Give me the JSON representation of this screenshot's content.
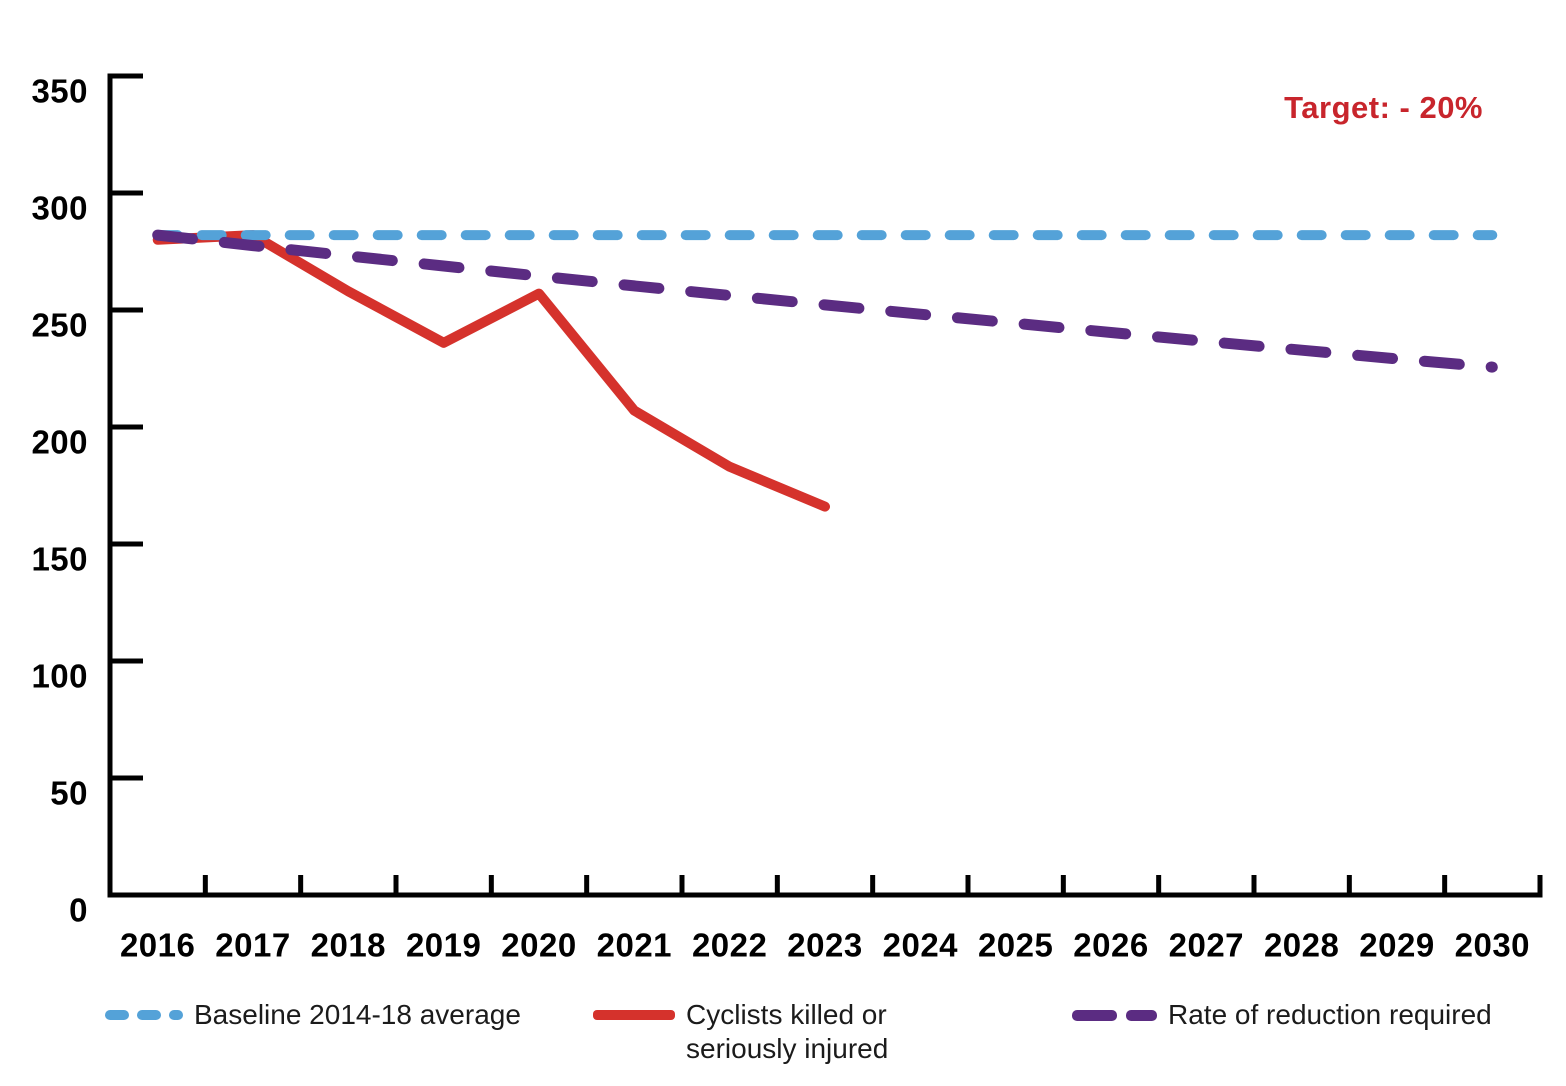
{
  "chart_data": {
    "type": "line",
    "categories": [
      "2016",
      "2017",
      "2018",
      "2019",
      "2020",
      "2021",
      "2022",
      "2023",
      "2024",
      "2025",
      "2026",
      "2027",
      "2028",
      "2029",
      "2030"
    ],
    "series": [
      {
        "id": "actual",
        "name": "Cyclists killed or seriously injured",
        "color": "#d5322c",
        "style": "solid",
        "values": [
          280,
          282,
          258,
          236,
          257,
          207,
          183,
          166
        ]
      },
      {
        "id": "baseline",
        "name": "Baseline 2014-18 average",
        "color": "#54a2d8",
        "style": "dashed",
        "values": [
          282,
          282,
          282,
          282,
          282,
          282,
          282,
          282,
          282,
          282,
          282,
          282,
          282,
          282,
          282
        ]
      },
      {
        "id": "required",
        "name": "Rate of reduction required",
        "color": "#5b2c82",
        "style": "dashed",
        "values": [
          282,
          277.5,
          273.1,
          268.8,
          264.5,
          260.3,
          256.2,
          252.2,
          248.2,
          244.3,
          240.4,
          236.6,
          232.8,
          229.1,
          225.6
        ]
      }
    ],
    "title": "",
    "xlabel": "",
    "ylabel": "",
    "ylim": [
      0,
      350
    ],
    "yticks": [
      0,
      50,
      100,
      150,
      200,
      250,
      300,
      350
    ],
    "grid": false,
    "legend_position": "bottom",
    "annotation": {
      "text": "Target: - 20%",
      "color": "#c8252c"
    },
    "axis_color": "#000000"
  },
  "legend": {
    "items": [
      {
        "line1": "Baseline 2014-18 average",
        "line2": ""
      },
      {
        "line1": "Cyclists killed or",
        "line2": "seriously injured"
      },
      {
        "line1": "Rate of reduction required",
        "line2": ""
      }
    ]
  }
}
